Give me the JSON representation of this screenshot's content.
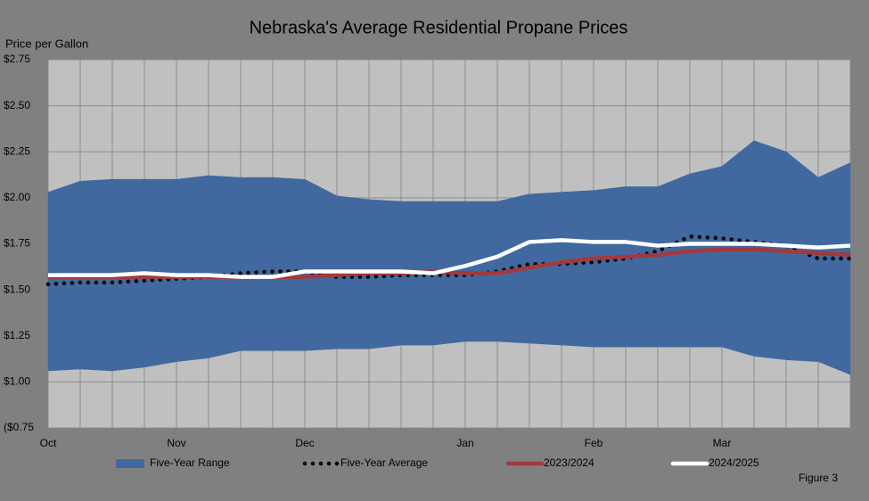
{
  "chart_data": {
    "type": "line",
    "title": "Nebraska's Average Residential Propane Prices",
    "y_label": "Price per Gallon",
    "note": "Figure 3",
    "categories": [
      "Oct",
      null,
      null,
      null,
      "Nov",
      null,
      null,
      null,
      "Dec",
      null,
      null,
      null,
      null,
      "Jan",
      null,
      null,
      null,
      "Feb",
      null,
      null,
      null,
      "Mar",
      null,
      null,
      null,
      null
    ],
    "ylim": [
      0.75,
      2.75
    ],
    "yticks": [
      {
        "value": 0.75,
        "label": "($0.75"
      },
      {
        "value": 1.0,
        "label": "$1.00"
      },
      {
        "value": 1.25,
        "label": "$1.25"
      },
      {
        "value": 1.5,
        "label": "$1.50"
      },
      {
        "value": 1.75,
        "label": "$1.75"
      },
      {
        "value": 2.0,
        "label": "$2.00"
      },
      {
        "value": 2.25,
        "label": "$2.25"
      },
      {
        "value": 2.5,
        "label": "$2.50"
      },
      {
        "value": 2.75,
        "label": "$2.75"
      }
    ],
    "grid": true,
    "series": [
      {
        "name": "Five-Year Range",
        "style": "range",
        "color": "#41699f",
        "high": [
          2.03,
          2.09,
          2.1,
          2.1,
          2.1,
          2.12,
          2.11,
          2.11,
          2.1,
          2.01,
          1.99,
          1.98,
          1.98,
          1.98,
          1.98,
          2.02,
          2.03,
          2.04,
          2.06,
          2.06,
          2.13,
          2.17,
          2.31,
          2.25,
          2.11,
          2.19
        ],
        "low": [
          1.06,
          1.07,
          1.06,
          1.08,
          1.11,
          1.13,
          1.17,
          1.17,
          1.17,
          1.18,
          1.18,
          1.2,
          1.2,
          1.22,
          1.22,
          1.21,
          1.2,
          1.19,
          1.19,
          1.19,
          1.19,
          1.19,
          1.14,
          1.12,
          1.11,
          1.04
        ]
      },
      {
        "name": "Five-Year Average",
        "style": "dotted",
        "color": "#000000",
        "values": [
          1.53,
          1.54,
          1.54,
          1.55,
          1.56,
          1.57,
          1.59,
          1.6,
          1.6,
          1.57,
          1.57,
          1.58,
          1.58,
          1.58,
          1.6,
          1.64,
          1.64,
          1.65,
          1.67,
          1.71,
          1.79,
          1.78,
          1.76,
          1.74,
          1.67,
          1.67
        ]
      },
      {
        "name": "2023/2024",
        "style": "line",
        "color": "#a3393c",
        "values": [
          1.57,
          1.57,
          1.57,
          1.57,
          1.57,
          1.57,
          1.57,
          1.57,
          1.57,
          1.58,
          1.59,
          1.59,
          1.6,
          1.59,
          1.59,
          1.62,
          1.65,
          1.67,
          1.68,
          1.69,
          1.71,
          1.72,
          1.72,
          1.71,
          1.7,
          1.69
        ]
      },
      {
        "name": "2024/2025",
        "style": "line",
        "color": "#ffffff",
        "values": [
          1.58,
          1.58,
          1.58,
          1.59,
          1.58,
          1.58,
          1.57,
          1.57,
          1.6,
          1.6,
          1.6,
          1.6,
          1.59,
          1.63,
          1.68,
          1.76,
          1.77,
          1.76,
          1.76,
          1.74,
          1.75,
          1.75,
          1.75,
          1.74,
          1.73,
          1.74
        ]
      }
    ]
  }
}
